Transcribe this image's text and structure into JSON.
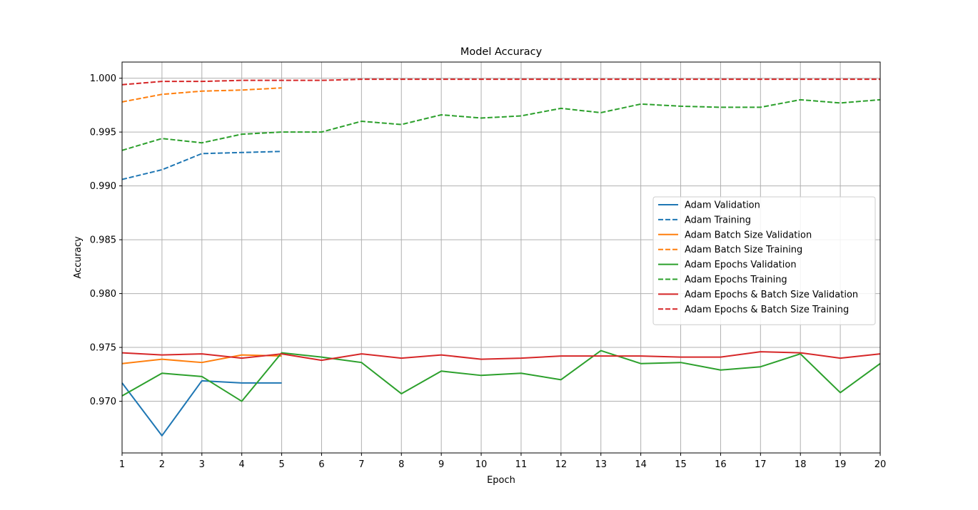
{
  "chart_data": {
    "type": "line",
    "title": "Model Accuracy",
    "xlabel": "Epoch",
    "ylabel": "Accuracy",
    "xlim": [
      1,
      20
    ],
    "ylim": [
      0.9652,
      1.0015
    ],
    "xticks": [
      1,
      2,
      3,
      4,
      5,
      6,
      7,
      8,
      9,
      10,
      11,
      12,
      13,
      14,
      15,
      16,
      17,
      18,
      19,
      20
    ],
    "yticks": [
      0.97,
      0.975,
      0.98,
      0.985,
      0.99,
      0.995,
      1.0
    ],
    "ytick_labels": [
      "0.970",
      "0.975",
      "0.980",
      "0.985",
      "0.990",
      "0.995",
      "1.000"
    ],
    "grid": true,
    "legend_position": "center-right",
    "series": [
      {
        "name": "Adam Validation",
        "color": "#1f77b4",
        "dash": "solid",
        "x": [
          1,
          2,
          3,
          4,
          5
        ],
        "y": [
          0.9717,
          0.9668,
          0.9719,
          0.9717,
          0.9717
        ]
      },
      {
        "name": "Adam Training",
        "color": "#1f77b4",
        "dash": "dashed",
        "x": [
          1,
          2,
          3,
          4,
          5
        ],
        "y": [
          0.9906,
          0.9915,
          0.993,
          0.9931,
          0.9932
        ]
      },
      {
        "name": "Adam Batch Size Validation",
        "color": "#ff7f0e",
        "dash": "solid",
        "x": [
          1,
          2,
          3,
          4,
          5
        ],
        "y": [
          0.9735,
          0.9739,
          0.9736,
          0.9743,
          0.9742
        ]
      },
      {
        "name": "Adam Batch Size Training",
        "color": "#ff7f0e",
        "dash": "dashed",
        "x": [
          1,
          2,
          3,
          4,
          5
        ],
        "y": [
          0.9978,
          0.9985,
          0.9988,
          0.9989,
          0.9991
        ]
      },
      {
        "name": "Adam Epochs Validation",
        "color": "#2ca02c",
        "dash": "solid",
        "x": [
          1,
          2,
          3,
          4,
          5,
          6,
          7,
          8,
          9,
          10,
          11,
          12,
          13,
          14,
          15,
          16,
          17,
          18,
          19,
          20
        ],
        "y": [
          0.9705,
          0.9726,
          0.9723,
          0.97,
          0.9745,
          0.9741,
          0.9736,
          0.9707,
          0.9728,
          0.9724,
          0.9726,
          0.972,
          0.9747,
          0.9735,
          0.9736,
          0.9729,
          0.9732,
          0.9744,
          0.9708,
          0.9735
        ]
      },
      {
        "name": "Adam Epochs Training",
        "color": "#2ca02c",
        "dash": "dashed",
        "x": [
          1,
          2,
          3,
          4,
          5,
          6,
          7,
          8,
          9,
          10,
          11,
          12,
          13,
          14,
          15,
          16,
          17,
          18,
          19,
          20
        ],
        "y": [
          0.9933,
          0.9944,
          0.994,
          0.9948,
          0.995,
          0.995,
          0.996,
          0.9957,
          0.9966,
          0.9963,
          0.9965,
          0.9972,
          0.9968,
          0.9976,
          0.9974,
          0.9973,
          0.9973,
          0.998,
          0.9977,
          0.998
        ]
      },
      {
        "name": "Adam Epochs & Batch Size Validation",
        "color": "#d62728",
        "dash": "solid",
        "x": [
          1,
          2,
          3,
          4,
          5,
          6,
          7,
          8,
          9,
          10,
          11,
          12,
          13,
          14,
          15,
          16,
          17,
          18,
          19,
          20
        ],
        "y": [
          0.9745,
          0.9743,
          0.9744,
          0.974,
          0.9744,
          0.9738,
          0.9744,
          0.974,
          0.9743,
          0.9739,
          0.974,
          0.9742,
          0.9742,
          0.9742,
          0.9741,
          0.9741,
          0.9746,
          0.9745,
          0.974,
          0.9744
        ]
      },
      {
        "name": "Adam Epochs & Batch Size Training",
        "color": "#d62728",
        "dash": "dashed",
        "x": [
          1,
          2,
          3,
          4,
          5,
          6,
          7,
          8,
          9,
          10,
          11,
          12,
          13,
          14,
          15,
          16,
          17,
          18,
          19,
          20
        ],
        "y": [
          0.9994,
          0.9997,
          0.9997,
          0.9998,
          0.9998,
          0.9998,
          0.9999,
          0.9999,
          0.9999,
          0.9999,
          0.9999,
          0.9999,
          0.9999,
          0.9999,
          0.9999,
          0.9999,
          0.9999,
          0.9999,
          0.9999,
          0.9999
        ]
      }
    ]
  }
}
